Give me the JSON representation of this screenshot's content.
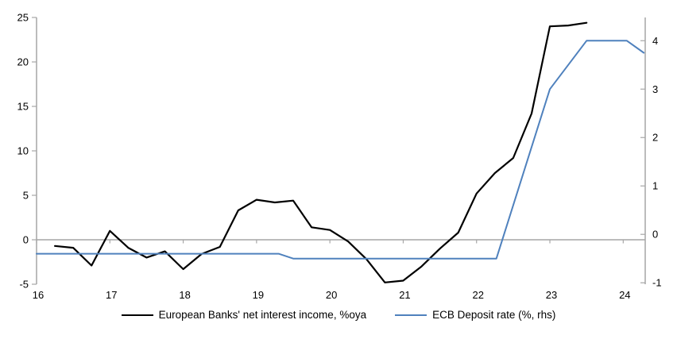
{
  "chart_data": {
    "type": "line",
    "title": "",
    "x_axis": {
      "range": [
        16,
        24.3
      ],
      "ticks": [
        16,
        17,
        18,
        19,
        20,
        21,
        22,
        23,
        24
      ],
      "tick_labels": [
        "16",
        "17",
        "18",
        "19",
        "20",
        "21",
        "22",
        "23",
        "24"
      ]
    },
    "left_axis": {
      "range": [
        -5,
        25
      ],
      "ticks": [
        -5,
        0,
        5,
        10,
        15,
        20,
        25
      ],
      "tick_labels": [
        "-5",
        "0",
        "5",
        "10",
        "15",
        "20",
        "25"
      ]
    },
    "right_axis": {
      "range": [
        -1.03,
        4.48
      ],
      "ticks": [
        -1,
        0,
        1,
        2,
        3,
        4
      ],
      "tick_labels": [
        "-1",
        "0",
        "1",
        "2",
        "3",
        "4"
      ]
    },
    "zero_line": {
      "axis": "left",
      "value": 0
    },
    "grid": "off",
    "legend_position": "bottom",
    "axis_color": "#a6a6a6",
    "text_color": "#000000",
    "series": [
      {
        "name": "European Banks' net interest income, %oya",
        "axis": "left",
        "color": "#000000",
        "stroke_width": 2.2,
        "points": [
          [
            16.25,
            -0.7
          ],
          [
            16.5,
            -0.9
          ],
          [
            16.75,
            -2.9
          ],
          [
            17.0,
            1.0
          ],
          [
            17.25,
            -0.9
          ],
          [
            17.5,
            -2.0
          ],
          [
            17.75,
            -1.3
          ],
          [
            18.0,
            -3.3
          ],
          [
            18.25,
            -1.6
          ],
          [
            18.5,
            -0.8
          ],
          [
            18.75,
            3.3
          ],
          [
            19.0,
            4.5
          ],
          [
            19.25,
            4.2
          ],
          [
            19.5,
            4.4
          ],
          [
            19.75,
            1.4
          ],
          [
            20.0,
            1.1
          ],
          [
            20.25,
            -0.2
          ],
          [
            20.5,
            -2.2
          ],
          [
            20.75,
            -4.8
          ],
          [
            21.0,
            -4.6
          ],
          [
            21.25,
            -3.0
          ],
          [
            21.5,
            -1.0
          ],
          [
            21.75,
            0.8
          ],
          [
            22.0,
            5.2
          ],
          [
            22.25,
            7.5
          ],
          [
            22.5,
            9.2
          ],
          [
            22.75,
            14.2
          ],
          [
            23.0,
            24.0
          ],
          [
            23.25,
            24.1
          ],
          [
            23.5,
            24.4
          ]
        ]
      },
      {
        "name": "ECB Deposit rate (%, rhs)",
        "axis": "right",
        "color": "#4f81bd",
        "stroke_width": 2.0,
        "points": [
          [
            16.0,
            -0.4
          ],
          [
            19.3,
            -0.4
          ],
          [
            19.5,
            -0.5
          ],
          [
            22.27,
            -0.5
          ],
          [
            23.0,
            3.0
          ],
          [
            23.5,
            4.0
          ],
          [
            24.05,
            4.0
          ],
          [
            24.28,
            3.75
          ]
        ]
      }
    ]
  }
}
